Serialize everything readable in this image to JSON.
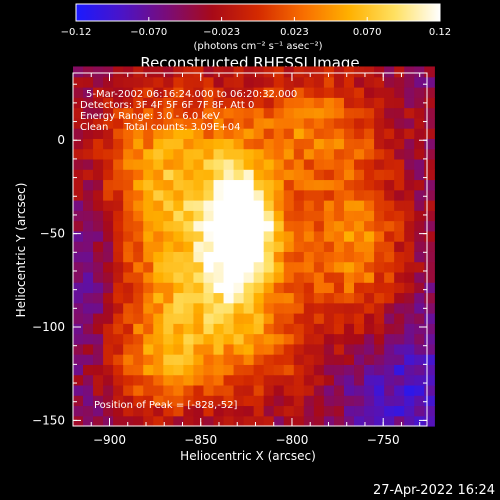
{
  "colorbar": {
    "ticks": [
      "-0.12",
      "-0.070",
      "-0.023",
      "0.023",
      "0.070",
      "0.12"
    ],
    "unit_label": "(photons cm⁻² s⁻¹ asec⁻²)",
    "range": [
      -0.12,
      0.12
    ],
    "palette": [
      "#1a1aff",
      "#4a14c8",
      "#7a0c78",
      "#a80a18",
      "#d42a00",
      "#f86e00",
      "#ffb000",
      "#ffe060",
      "#ffffff"
    ]
  },
  "annotations": {
    "time_range": "5-Mar-2002 06:16:24.000 to 06:20:32.000",
    "detectors": "Detectors: 3F 4F 5F 6F 7F 8F, Att 0",
    "energy": "Energy Range: 3.0 - 6.0 keV",
    "clean": "Clean     Total counts: 3.09E+04",
    "peak": "Position of Peak = [-828,-52]"
  },
  "footer": {
    "timestamp": "27-Apr-2022 16:24"
  },
  "chart_data": {
    "type": "heatmap",
    "title": "Reconstructed RHESSI Image",
    "xlabel": "Heliocentric X (arcsec)",
    "ylabel": "Heliocentric Y (arcsec)",
    "xlim": [
      -920,
      -726
    ],
    "ylim": [
      -153,
      36
    ],
    "x_ticks": [
      {
        "value": -900,
        "label": "−900"
      },
      {
        "value": -850,
        "label": "−850"
      },
      {
        "value": -800,
        "label": "−800"
      },
      {
        "value": -750,
        "label": "−750"
      }
    ],
    "y_ticks": [
      {
        "value": 0,
        "label": "0"
      },
      {
        "value": -50,
        "label": "−50"
      },
      {
        "value": -100,
        "label": "−100"
      },
      {
        "value": -150,
        "label": "−150"
      }
    ],
    "peak": {
      "x": -828,
      "y": -52,
      "value": 0.12
    },
    "grid": false
  }
}
